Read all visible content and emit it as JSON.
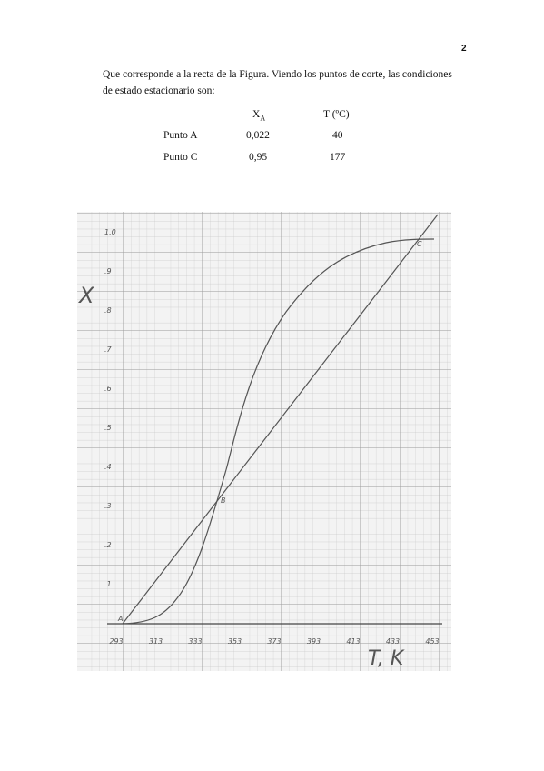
{
  "page_number": "2",
  "paragraph": [
    "Que corresponde a la recta de la Figura. Viendo los puntos de corte, las condiciones",
    "de estado estacionario son:"
  ],
  "table": {
    "header": {
      "x_symbol": "X",
      "x_subscript": "A",
      "temperature": "T (ºC)"
    },
    "rows": [
      [
        "Punto A",
        "0,022",
        "40"
      ],
      [
        "Punto C",
        "0,95",
        "177"
      ]
    ]
  },
  "figure": {
    "y_axis_label": "X",
    "x_axis_label": "T, K",
    "x_labels": [
      "293",
      "313",
      "333",
      "353",
      "373",
      "393",
      "413",
      "433",
      "453"
    ],
    "y_labels": [
      ".1",
      ".2",
      ".3",
      ".4",
      ".5",
      ".6",
      ".7",
      ".8",
      ".9",
      "1.0"
    ],
    "points": [
      "A",
      "B",
      "C"
    ]
  }
}
